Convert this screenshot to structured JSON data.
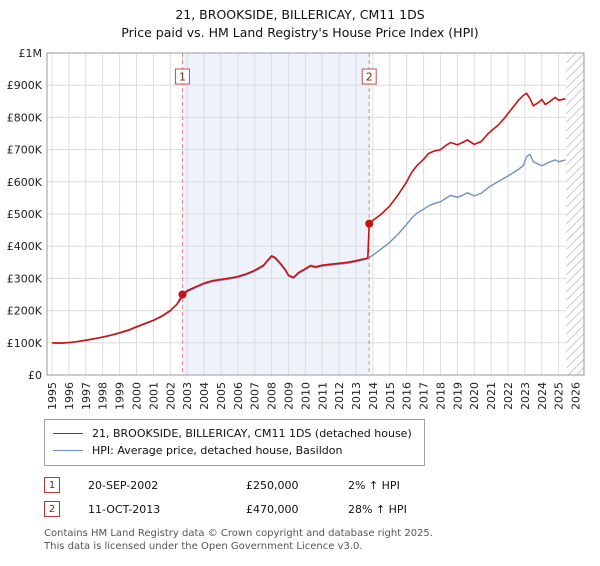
{
  "header": {
    "title": "21, BROOKSIDE, BILLERICAY, CM11 1DS",
    "subtitle": "Price paid vs. HM Land Registry's House Price Index (HPI)"
  },
  "transactions": [
    {
      "n": "1",
      "date": "20-SEP-2002",
      "price": "£250,000",
      "hpi_change": "2% ↑ HPI"
    },
    {
      "n": "2",
      "date": "11-OCT-2013",
      "price": "£470,000",
      "hpi_change": "28% ↑ HPI"
    }
  ],
  "footer": {
    "line1": "Contains HM Land Registry data © Crown copyright and database right 2025.",
    "line2": "This data is licensed under the Open Government Licence v3.0."
  },
  "chart_data": {
    "type": "line",
    "title": "21, BROOKSIDE, BILLERICAY, CM11 1DS",
    "subtitle": "Price paid vs. HM Land Registry's House Price Index (HPI)",
    "xlim": [
      1994.7,
      2026.5
    ],
    "ylim": [
      0,
      1000000
    ],
    "grid": true,
    "legend_position": "below",
    "x_ticks": [
      "1995",
      "1996",
      "1997",
      "1998",
      "1999",
      "2000",
      "2001",
      "2002",
      "2003",
      "2004",
      "2005",
      "2006",
      "2007",
      "2008",
      "2009",
      "2010",
      "2011",
      "2012",
      "2013",
      "2014",
      "2015",
      "2016",
      "2017",
      "2018",
      "2019",
      "2020",
      "2021",
      "2022",
      "2023",
      "2024",
      "2025",
      "2026"
    ],
    "y_ticks": [
      {
        "value": 0,
        "label": "£0"
      },
      {
        "value": 100000,
        "label": "£100K"
      },
      {
        "value": 200000,
        "label": "£200K"
      },
      {
        "value": 300000,
        "label": "£300K"
      },
      {
        "value": 400000,
        "label": "£400K"
      },
      {
        "value": 500000,
        "label": "£500K"
      },
      {
        "value": 600000,
        "label": "£600K"
      },
      {
        "value": 700000,
        "label": "£700K"
      },
      {
        "value": 800000,
        "label": "£800K"
      },
      {
        "value": 900000,
        "label": "£900K"
      },
      {
        "value": 1000000,
        "label": "£1M"
      }
    ],
    "shaded_region": [
      2002.72,
      2013.78
    ],
    "hatched_region": [
      2025.45,
      2026.5
    ],
    "sale_markers": [
      {
        "n": "1",
        "x": 2002.72,
        "y": 250000,
        "date": "20-SEP-2002",
        "price": 250000
      },
      {
        "n": "2",
        "x": 2013.78,
        "y": 470000,
        "date": "11-OCT-2013",
        "price": 470000
      }
    ],
    "colors": {
      "property_line": "#cc1111",
      "hpi_line": "#6d93c4",
      "sale_line": "#e08585",
      "sale_marker": "#cc1111",
      "shaded_region": "#eef2fa",
      "hatch": "#bdbdbd",
      "grid": "#dcdcdc",
      "border": "#9a9a9a",
      "tick_text": "#222222"
    },
    "series": [
      {
        "name": "21, BROOKSIDE, BILLERICAY, CM11 1DS (detached house)",
        "color": "#cc1111",
        "width": 1.6,
        "points": [
          [
            1995.0,
            100000
          ],
          [
            1995.5,
            99000
          ],
          [
            1996.0,
            101000
          ],
          [
            1996.5,
            104000
          ],
          [
            1997.0,
            108000
          ],
          [
            1997.5,
            113000
          ],
          [
            1998.0,
            118000
          ],
          [
            1998.5,
            124000
          ],
          [
            1999.0,
            131000
          ],
          [
            1999.5,
            139000
          ],
          [
            2000.0,
            150000
          ],
          [
            2000.5,
            160000
          ],
          [
            2001.0,
            170000
          ],
          [
            2001.5,
            183000
          ],
          [
            2002.0,
            200000
          ],
          [
            2002.4,
            220000
          ],
          [
            2002.72,
            250000
          ],
          [
            2003.0,
            262000
          ],
          [
            2003.5,
            274000
          ],
          [
            2004.0,
            285000
          ],
          [
            2004.5,
            293000
          ],
          [
            2005.0,
            297000
          ],
          [
            2005.5,
            301000
          ],
          [
            2006.0,
            306000
          ],
          [
            2006.5,
            314000
          ],
          [
            2007.0,
            325000
          ],
          [
            2007.5,
            340000
          ],
          [
            2007.8,
            358000
          ],
          [
            2008.0,
            370000
          ],
          [
            2008.2,
            365000
          ],
          [
            2008.5,
            348000
          ],
          [
            2008.8,
            328000
          ],
          [
            2009.0,
            310000
          ],
          [
            2009.3,
            303000
          ],
          [
            2009.6,
            318000
          ],
          [
            2010.0,
            330000
          ],
          [
            2010.3,
            340000
          ],
          [
            2010.6,
            336000
          ],
          [
            2011.0,
            341000
          ],
          [
            2011.5,
            344000
          ],
          [
            2012.0,
            347000
          ],
          [
            2012.5,
            350000
          ],
          [
            2013.0,
            355000
          ],
          [
            2013.4,
            360000
          ],
          [
            2013.7,
            363000
          ],
          [
            2013.78,
            470000
          ],
          [
            2014.0,
            480000
          ],
          [
            2014.5,
            500000
          ],
          [
            2015.0,
            525000
          ],
          [
            2015.5,
            560000
          ],
          [
            2016.0,
            600000
          ],
          [
            2016.3,
            630000
          ],
          [
            2016.6,
            650000
          ],
          [
            2017.0,
            670000
          ],
          [
            2017.3,
            688000
          ],
          [
            2017.6,
            695000
          ],
          [
            2018.0,
            700000
          ],
          [
            2018.3,
            712000
          ],
          [
            2018.6,
            722000
          ],
          [
            2019.0,
            715000
          ],
          [
            2019.3,
            722000
          ],
          [
            2019.6,
            730000
          ],
          [
            2020.0,
            716000
          ],
          [
            2020.4,
            725000
          ],
          [
            2020.8,
            748000
          ],
          [
            2021.0,
            758000
          ],
          [
            2021.4,
            775000
          ],
          [
            2021.8,
            798000
          ],
          [
            2022.0,
            812000
          ],
          [
            2022.3,
            832000
          ],
          [
            2022.6,
            852000
          ],
          [
            2022.9,
            868000
          ],
          [
            2023.1,
            875000
          ],
          [
            2023.3,
            858000
          ],
          [
            2023.5,
            836000
          ],
          [
            2023.8,
            846000
          ],
          [
            2024.0,
            856000
          ],
          [
            2024.2,
            840000
          ],
          [
            2024.5,
            850000
          ],
          [
            2024.8,
            862000
          ],
          [
            2025.0,
            853000
          ],
          [
            2025.4,
            858000
          ]
        ]
      },
      {
        "name": "HPI: Average price, detached house, Basildon",
        "color": "#6d93c4",
        "width": 1.4,
        "points": [
          [
            1995.0,
            99000
          ],
          [
            1995.5,
            98000
          ],
          [
            1996.0,
            100000
          ],
          [
            1996.5,
            103000
          ],
          [
            1997.0,
            107000
          ],
          [
            1997.5,
            112000
          ],
          [
            1998.0,
            117000
          ],
          [
            1998.5,
            123000
          ],
          [
            1999.0,
            130000
          ],
          [
            1999.5,
            138000
          ],
          [
            2000.0,
            148000
          ],
          [
            2000.5,
            158000
          ],
          [
            2001.0,
            169000
          ],
          [
            2001.5,
            181000
          ],
          [
            2002.0,
            198000
          ],
          [
            2002.5,
            226000
          ],
          [
            2003.0,
            258000
          ],
          [
            2003.5,
            271000
          ],
          [
            2004.0,
            282000
          ],
          [
            2004.5,
            290000
          ],
          [
            2005.0,
            294000
          ],
          [
            2005.5,
            298000
          ],
          [
            2006.0,
            303000
          ],
          [
            2006.5,
            311000
          ],
          [
            2007.0,
            322000
          ],
          [
            2007.5,
            337000
          ],
          [
            2007.8,
            355000
          ],
          [
            2008.0,
            367000
          ],
          [
            2008.2,
            362000
          ],
          [
            2008.5,
            345000
          ],
          [
            2008.8,
            325000
          ],
          [
            2009.0,
            307000
          ],
          [
            2009.3,
            300000
          ],
          [
            2009.6,
            315000
          ],
          [
            2010.0,
            327000
          ],
          [
            2010.3,
            337000
          ],
          [
            2010.6,
            333000
          ],
          [
            2011.0,
            338000
          ],
          [
            2011.5,
            341000
          ],
          [
            2012.0,
            344000
          ],
          [
            2012.5,
            347000
          ],
          [
            2013.0,
            352000
          ],
          [
            2013.5,
            358000
          ],
          [
            2013.78,
            365000
          ],
          [
            2014.0,
            372000
          ],
          [
            2014.5,
            392000
          ],
          [
            2015.0,
            412000
          ],
          [
            2015.5,
            438000
          ],
          [
            2016.0,
            468000
          ],
          [
            2016.3,
            488000
          ],
          [
            2016.6,
            502000
          ],
          [
            2017.0,
            515000
          ],
          [
            2017.3,
            525000
          ],
          [
            2017.6,
            532000
          ],
          [
            2018.0,
            538000
          ],
          [
            2018.3,
            548000
          ],
          [
            2018.6,
            558000
          ],
          [
            2019.0,
            552000
          ],
          [
            2019.3,
            558000
          ],
          [
            2019.6,
            566000
          ],
          [
            2020.0,
            556000
          ],
          [
            2020.4,
            564000
          ],
          [
            2020.8,
            580000
          ],
          [
            2021.0,
            588000
          ],
          [
            2021.4,
            600000
          ],
          [
            2021.8,
            612000
          ],
          [
            2022.0,
            618000
          ],
          [
            2022.3,
            628000
          ],
          [
            2022.6,
            638000
          ],
          [
            2022.9,
            650000
          ],
          [
            2023.1,
            678000
          ],
          [
            2023.3,
            685000
          ],
          [
            2023.5,
            662000
          ],
          [
            2023.8,
            655000
          ],
          [
            2024.0,
            650000
          ],
          [
            2024.2,
            655000
          ],
          [
            2024.5,
            662000
          ],
          [
            2024.8,
            668000
          ],
          [
            2025.0,
            662000
          ],
          [
            2025.4,
            668000
          ]
        ]
      }
    ]
  }
}
